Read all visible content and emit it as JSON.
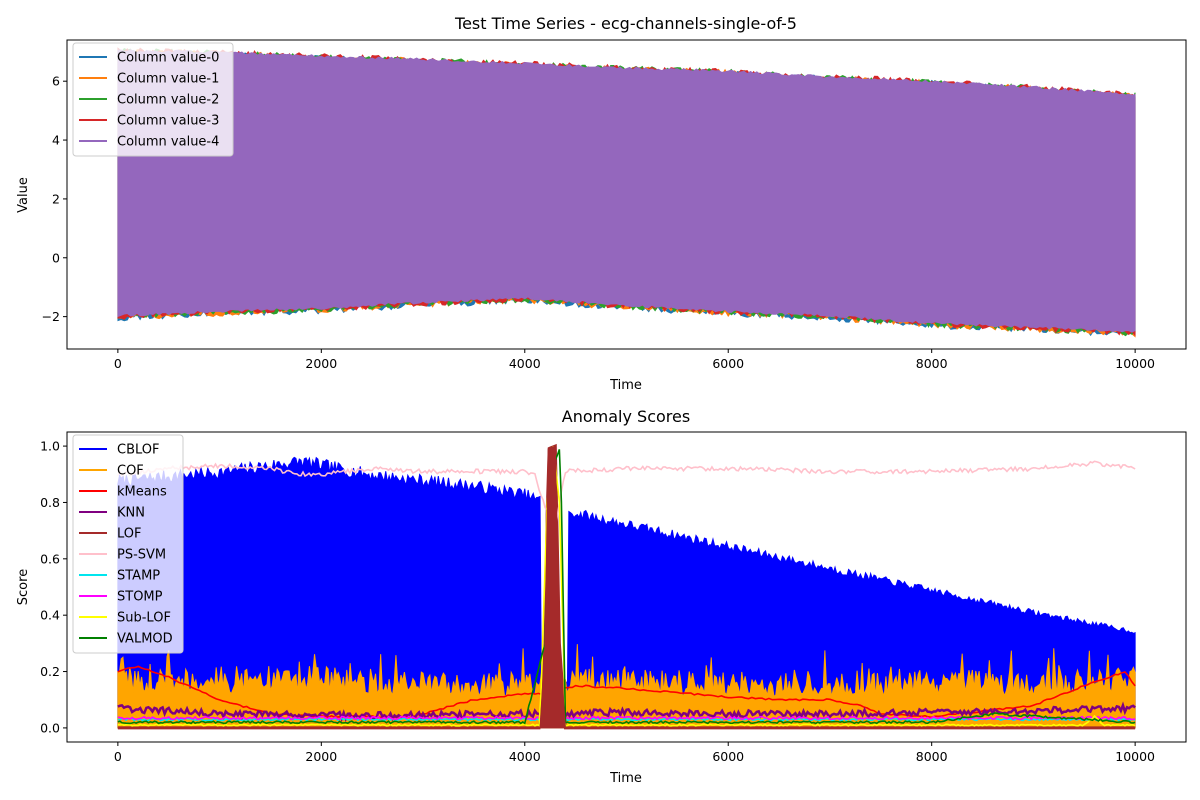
{
  "chart_data": [
    {
      "type": "area",
      "title": "Test Time Series - ecg-channels-single-of-5",
      "xlabel": "Time",
      "ylabel": "Value",
      "xlim": [
        -500,
        10500
      ],
      "ylim": [
        -3.1,
        7.4
      ],
      "x_ticks": [
        0,
        2000,
        4000,
        6000,
        8000,
        10000
      ],
      "y_ticks": [
        -2,
        0,
        2,
        4,
        6
      ],
      "legend_position": "top-left",
      "upper_envelope": {
        "x": [
          0,
          1000,
          2000,
          3000,
          4000,
          5000,
          6000,
          7000,
          8000,
          9000,
          10000
        ],
        "y": [
          7.0,
          6.95,
          6.8,
          6.7,
          6.55,
          6.4,
          6.3,
          6.1,
          5.95,
          5.75,
          5.5
        ]
      },
      "lower_envelope": {
        "x": [
          0,
          1000,
          2000,
          3000,
          4000,
          5000,
          6000,
          7000,
          8000,
          9000,
          10000
        ],
        "y": [
          -2.0,
          -1.85,
          -1.75,
          -1.55,
          -1.4,
          -1.65,
          -1.85,
          -2.0,
          -2.25,
          -2.4,
          -2.55
        ]
      },
      "series": [
        {
          "name": "Column value-0",
          "color": "#1f77b4"
        },
        {
          "name": "Column value-1",
          "color": "#ff7f0e"
        },
        {
          "name": "Column value-2",
          "color": "#2ca02c"
        },
        {
          "name": "Column value-3",
          "color": "#d62728"
        },
        {
          "name": "Column value-4",
          "color": "#9467bd"
        }
      ]
    },
    {
      "type": "line",
      "title": "Anomaly Scores",
      "xlabel": "Time",
      "ylabel": "Score",
      "xlim": [
        -500,
        10500
      ],
      "ylim": [
        -0.05,
        1.05
      ],
      "x_ticks": [
        0,
        2000,
        4000,
        6000,
        8000,
        10000
      ],
      "y_ticks": [
        0.0,
        0.2,
        0.4,
        0.6,
        0.8,
        1.0
      ],
      "legend_position": "top-left",
      "anomaly_region": [
        4150,
        4400
      ],
      "series": [
        {
          "name": "CBLOF",
          "color": "#0000ff",
          "fill": true,
          "x": [
            0,
            1000,
            1800,
            2500,
            3500,
            4000,
            4200,
            4500,
            5000,
            6000,
            7000,
            8000,
            9000,
            10000
          ],
          "y": [
            0.9,
            0.93,
            0.97,
            0.92,
            0.88,
            0.85,
            0.82,
            0.78,
            0.74,
            0.66,
            0.58,
            0.5,
            0.42,
            0.35
          ]
        },
        {
          "name": "COF",
          "color": "#ffa500",
          "fill": true,
          "x": [
            0,
            1000,
            2000,
            3000,
            4000,
            5000,
            6000,
            7000,
            8000,
            9000,
            10000
          ],
          "y": [
            0.22,
            0.22,
            0.22,
            0.2,
            0.2,
            0.22,
            0.2,
            0.19,
            0.21,
            0.2,
            0.22
          ]
        },
        {
          "name": "kMeans",
          "color": "#ff0000",
          "x": [
            0,
            200,
            500,
            1000,
            1500,
            2000,
            2500,
            2900,
            3100,
            3500,
            4000,
            4200,
            4500,
            5000,
            6000,
            6500,
            7000,
            7300,
            7500,
            8000,
            8500,
            9000,
            9500,
            9900,
            10000
          ],
          "y": [
            0.2,
            0.22,
            0.18,
            0.1,
            0.05,
            0.04,
            0.04,
            0.04,
            0.06,
            0.1,
            0.12,
            0.12,
            0.15,
            0.14,
            0.11,
            0.1,
            0.1,
            0.08,
            0.05,
            0.04,
            0.06,
            0.08,
            0.15,
            0.2,
            0.15
          ]
        },
        {
          "name": "KNN",
          "color": "#800080",
          "x": [
            0,
            500,
            1000,
            2000,
            3000,
            4000,
            5000,
            6000,
            7000,
            8000,
            9000,
            10000
          ],
          "y": [
            0.07,
            0.06,
            0.05,
            0.045,
            0.045,
            0.05,
            0.055,
            0.05,
            0.05,
            0.055,
            0.06,
            0.07
          ]
        },
        {
          "name": "LOF",
          "color": "#a52a2a",
          "x": [
            0,
            4150,
            4200,
            4230,
            4300,
            4340,
            4400,
            10000
          ],
          "y": [
            0.0,
            0.0,
            0.3,
            0.99,
            1.0,
            0.3,
            0.0,
            0.0
          ]
        },
        {
          "name": "PS-SVM",
          "color": "#ffc0cb",
          "x": [
            0,
            500,
            1000,
            1500,
            1800,
            2000,
            2500,
            3000,
            3500,
            4000,
            4100,
            4200,
            4300,
            4400,
            5000,
            6000,
            7000,
            8000,
            9000,
            9600,
            10000
          ],
          "y": [
            0.9,
            0.92,
            0.93,
            0.92,
            0.9,
            0.9,
            0.92,
            0.91,
            0.91,
            0.91,
            0.9,
            0.78,
            0.72,
            0.91,
            0.92,
            0.92,
            0.91,
            0.91,
            0.92,
            0.94,
            0.92
          ]
        },
        {
          "name": "STAMP",
          "color": "#00e5ee",
          "x": [
            0,
            2000,
            4000,
            6000,
            8000,
            10000
          ],
          "y": [
            0.03,
            0.03,
            0.03,
            0.03,
            0.03,
            0.03
          ]
        },
        {
          "name": "STOMP",
          "color": "#ff00ff",
          "x": [
            0,
            2000,
            4000,
            6000,
            8000,
            10000
          ],
          "y": [
            0.035,
            0.035,
            0.035,
            0.035,
            0.035,
            0.035
          ]
        },
        {
          "name": "Sub-LOF",
          "color": "#ffff00",
          "x": [
            0,
            4150,
            4220,
            4280,
            4340,
            4400,
            9500,
            9600,
            9700,
            10000
          ],
          "y": [
            0.01,
            0.01,
            0.8,
            1.0,
            0.8,
            0.01,
            0.01,
            0.04,
            0.01,
            0.01
          ]
        },
        {
          "name": "VALMOD",
          "color": "#008000",
          "x": [
            0,
            2000,
            4000,
            4200,
            4250,
            4300,
            4350,
            4400,
            6000,
            8000,
            8600,
            10000
          ],
          "y": [
            0.02,
            0.02,
            0.02,
            0.3,
            1.0,
            0.95,
            1.0,
            0.02,
            0.02,
            0.02,
            0.05,
            0.02
          ]
        }
      ]
    }
  ]
}
